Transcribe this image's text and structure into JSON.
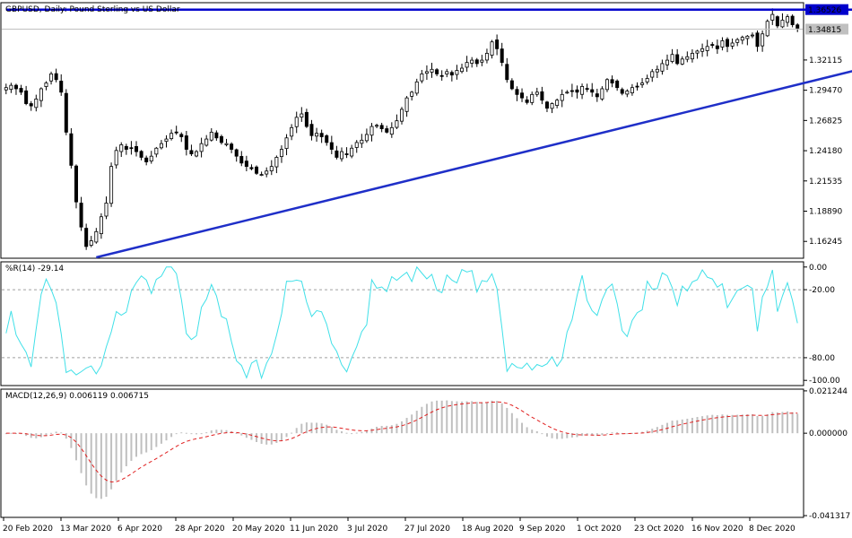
{
  "chart_data": [
    {
      "type": "candlestick",
      "title": "GBPUSD, Daily:  Pound Sterling vs US Dollar",
      "y_ticks": [
        "1.32115",
        "1.29470",
        "1.26825",
        "1.24180",
        "1.21535",
        "1.18890",
        "1.16245"
      ],
      "ylim": [
        1.1485,
        1.3705
      ],
      "price_tags": [
        {
          "label": "1.36526",
          "value": 1.36526,
          "color": "#0000cc",
          "text_color": "#ffffff"
        },
        {
          "label": "1.34815",
          "value": 1.34815,
          "color": "#c0c0c0",
          "text_color": "#ffffff"
        }
      ],
      "trendlines": [
        {
          "name": "resistance",
          "color": "#0000cc",
          "points": [
            [
              0,
              1.3652
            ],
            [
              176,
              1.3652
            ]
          ]
        },
        {
          "name": "support",
          "color": "#1f2fc8",
          "points": [
            [
              18,
              1.1485
            ],
            [
              176,
              1.319
            ]
          ]
        }
      ],
      "close_series": [
        1.297,
        1.299,
        1.296,
        1.293,
        1.283,
        1.281,
        1.287,
        1.296,
        1.301,
        1.309,
        1.304,
        1.293,
        1.258,
        1.229,
        1.197,
        1.175,
        1.158,
        1.163,
        1.171,
        1.184,
        1.196,
        1.228,
        1.242,
        1.247,
        1.243,
        1.244,
        1.241,
        1.236,
        1.232,
        1.237,
        1.244,
        1.248,
        1.252,
        1.257,
        1.258,
        1.254,
        1.243,
        1.239,
        1.241,
        1.248,
        1.252,
        1.258,
        1.253,
        1.249,
        1.248,
        1.243,
        1.237,
        1.231,
        1.228,
        1.226,
        1.222,
        1.221,
        1.224,
        1.228,
        1.236,
        1.243,
        1.253,
        1.262,
        1.271,
        1.274,
        1.263,
        1.255,
        1.257,
        1.254,
        1.249,
        1.243,
        1.236,
        1.241,
        1.239,
        1.244,
        1.249,
        1.251,
        1.256,
        1.263,
        1.264,
        1.261,
        1.258,
        1.262,
        1.268,
        1.278,
        1.288,
        1.293,
        1.302,
        1.309,
        1.311,
        1.313,
        1.309,
        1.307,
        1.311,
        1.308,
        1.312,
        1.314,
        1.319,
        1.321,
        1.318,
        1.321,
        1.327,
        1.337,
        1.331,
        1.319,
        1.304,
        1.296,
        1.291,
        1.288,
        1.284,
        1.291,
        1.293,
        1.286,
        1.279,
        1.283,
        1.286,
        1.291,
        1.293,
        1.294,
        1.293,
        1.298,
        1.296,
        1.293,
        1.289,
        1.296,
        1.304,
        1.301,
        1.297,
        1.292,
        1.294,
        1.297,
        1.298,
        1.301,
        1.305,
        1.311,
        1.313,
        1.318,
        1.321,
        1.326,
        1.318,
        1.322,
        1.324,
        1.327,
        1.329,
        1.331,
        1.333,
        1.334,
        1.331,
        1.338,
        1.333,
        1.336,
        1.339,
        1.341,
        1.342,
        1.343,
        1.333,
        1.344,
        1.355,
        1.361,
        1.351,
        1.356,
        1.359,
        1.352,
        1.349
      ]
    },
    {
      "type": "line",
      "title": "%R(14) -29.14",
      "y_ticks": [
        "0.00",
        "-20.00",
        "-80.00",
        "-100.00"
      ],
      "ylim": [
        -103,
        3
      ],
      "levels": [
        -20,
        -80
      ],
      "series": [
        {
          "name": "%R(14)",
          "color": "#40e0e8"
        }
      ]
    },
    {
      "type": "histogram+line",
      "title": "MACD(12,26,9) 0.006119 0.006715",
      "y_ticks": [
        "0.021244",
        "0.000000",
        "-0.041317"
      ],
      "ylim": [
        -0.0413,
        0.0212
      ],
      "series": [
        {
          "name": "MACD",
          "color": "#c0c0c0"
        },
        {
          "name": "Signal",
          "color": "#e02020"
        }
      ]
    }
  ],
  "x_ticks": [
    "20 Feb 2020",
    "13 Mar 2020",
    "6 Apr 2020",
    "28 Apr 2020",
    "20 May 2020",
    "11 Jun 2020",
    "3 Jul 2020",
    "27 Jul 2020",
    "18 Aug 2020",
    "9 Sep 2020",
    "1 Oct 2020",
    "23 Oct 2020",
    "16 Nov 2020",
    "8 Dec 2020"
  ]
}
